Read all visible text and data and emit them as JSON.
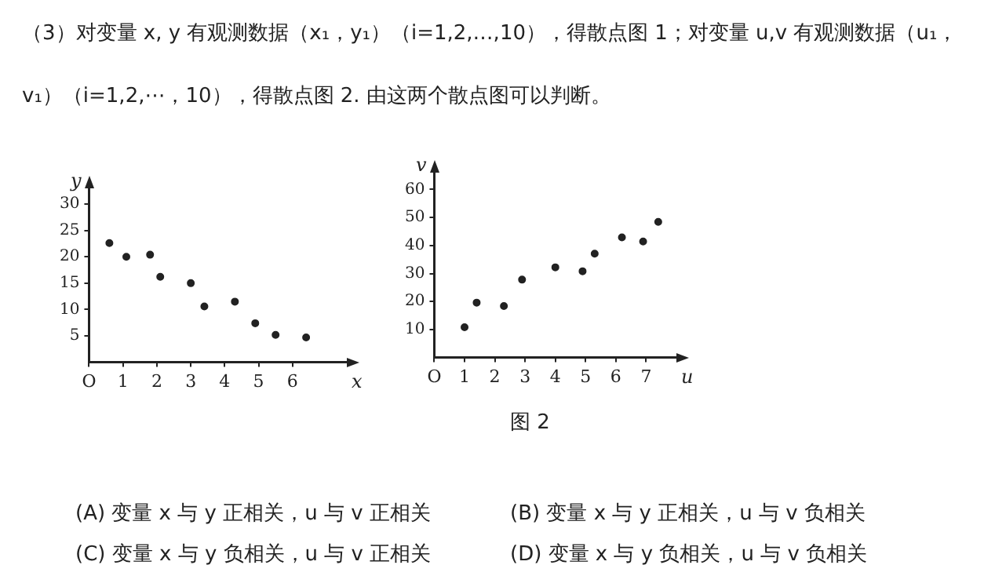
{
  "chart_data": [
    {
      "type": "scatter",
      "xlabel": "x",
      "ylabel": "y",
      "marker": "circle",
      "grid": false,
      "legend": false,
      "xlim": [
        0,
        7.6
      ],
      "ylim": [
        0,
        33
      ],
      "xticks": [
        {
          "value": 0,
          "label": "O"
        },
        1,
        2,
        3,
        4,
        5,
        6
      ],
      "yticks": [
        5,
        10,
        15,
        20,
        25,
        30
      ],
      "series": [
        {
          "color": "#222222",
          "x": [
            0.6,
            1.1,
            1.8,
            2.1,
            3.0,
            3.4,
            4.3,
            4.9,
            5.5,
            6.4
          ],
          "values": [
            22.6,
            20,
            20.4,
            16.2,
            15,
            10.6,
            11.5,
            7.4,
            5.2,
            4.7
          ]
        }
      ],
      "annotations": [
        "（3）对变量 x, y 有观测数据（x₁，y₁）（i=1,2,…,10），得散点图 1；对变量 u,v 有观测数据（u₁，v₁）（i=1,2,⋯，10），得散点图 2. 由这两个散点图可以判断。",
        "(A) 变量 x 与 y 正相关，u 与 v 正相关",
        "(B) 变量 x 与 y 正相关，u 与 v 负相关",
        "(C) 变量 x 与 y 负相关，u 与 v 正相关",
        "(D) 变量 x 与 y 负相关，u 与 v 负相关"
      ]
    },
    {
      "type": "scatter",
      "xlabel": "u",
      "ylabel": "v",
      "marker": "circle",
      "grid": false,
      "legend": false,
      "xlim": [
        0,
        8
      ],
      "ylim": [
        0,
        66
      ],
      "xticks": [
        {
          "value": 0,
          "label": "O"
        },
        1,
        2,
        3,
        4,
        5,
        6,
        7
      ],
      "yticks": [
        10,
        20,
        30,
        40,
        50,
        60
      ],
      "series": [
        {
          "color": "#222222",
          "x": [
            1.0,
            1.4,
            2.3,
            2.9,
            4.0,
            4.9,
            5.3,
            6.2,
            6.9,
            7.4
          ],
          "values": [
            10.8,
            19.6,
            18.4,
            27.8,
            32.2,
            30.8,
            37.1,
            42.9,
            41.4,
            48.4
          ]
        }
      ],
      "annotations": [
        "图 2"
      ]
    }
  ]
}
